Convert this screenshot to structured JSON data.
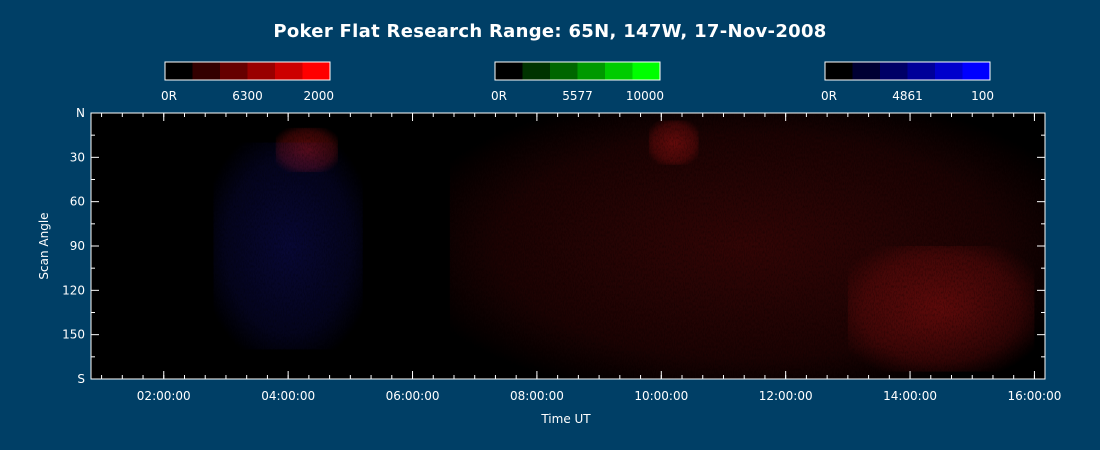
{
  "chart_data": {
    "type": "heatmap",
    "title": "Poker Flat Research Range: 65N, 147W, 17-Nov-2008",
    "xlabel": "Time UT",
    "ylabel": "Scan Angle",
    "x_range_hours": [
      0.83,
      16.17
    ],
    "x_ticks": [
      {
        "value": 2,
        "label": "02:00:00"
      },
      {
        "value": 4,
        "label": "04:00:00"
      },
      {
        "value": 6,
        "label": "06:00:00"
      },
      {
        "value": 8,
        "label": "08:00:00"
      },
      {
        "value": 10,
        "label": "10:00:00"
      },
      {
        "value": 12,
        "label": "12:00:00"
      },
      {
        "value": 14,
        "label": "14:00:00"
      },
      {
        "value": 16,
        "label": "16:00:00"
      }
    ],
    "y_range": [
      0,
      180
    ],
    "y_ticks": [
      {
        "value": 0,
        "label": "N"
      },
      {
        "value": 30,
        "label": "30"
      },
      {
        "value": 60,
        "label": "60"
      },
      {
        "value": 90,
        "label": "90"
      },
      {
        "value": 120,
        "label": "120"
      },
      {
        "value": 150,
        "label": "150"
      },
      {
        "value": 180,
        "label": "S"
      }
    ],
    "colorbars": [
      {
        "name": "6300",
        "low_label": "0R",
        "high_label": "2000",
        "low_value": 0,
        "high_value": 2000,
        "colors": [
          "#000000",
          "#330000",
          "#660000",
          "#990000",
          "#cc0000",
          "#ff0000"
        ]
      },
      {
        "name": "5577",
        "low_label": "0R",
        "high_label": "10000",
        "low_value": 0,
        "high_value": 10000,
        "colors": [
          "#000000",
          "#003300",
          "#006600",
          "#009900",
          "#00cc00",
          "#00ff00"
        ]
      },
      {
        "name": "4861",
        "low_label": "0R",
        "high_label": "100",
        "low_value": 0,
        "high_value": 100,
        "colors": [
          "#000000",
          "#000033",
          "#000066",
          "#000099",
          "#0000cc",
          "#0000ff"
        ]
      }
    ],
    "legend_placement": "top",
    "grid": false,
    "regions": [
      {
        "channel": "6300",
        "description": "faint red emission",
        "time_start": 6.6,
        "time_end": 16.2,
        "angle_start": 0,
        "angle_end": 180,
        "intensity": 0.12
      },
      {
        "channel": "6300",
        "description": "red patch",
        "time_start": 3.8,
        "time_end": 4.8,
        "angle_start": 10,
        "angle_end": 40,
        "intensity": 0.22
      },
      {
        "channel": "6300",
        "description": "red patch",
        "time_start": 9.8,
        "time_end": 10.6,
        "angle_start": 5,
        "angle_end": 35,
        "intensity": 0.2
      },
      {
        "channel": "6300",
        "description": "brighter red region",
        "time_start": 13.0,
        "time_end": 16.0,
        "angle_start": 90,
        "angle_end": 175,
        "intensity": 0.18
      },
      {
        "channel": "4861",
        "description": "faint blue emission",
        "time_start": 2.8,
        "time_end": 5.2,
        "angle_start": 20,
        "angle_end": 160,
        "intensity": 0.12
      }
    ]
  }
}
